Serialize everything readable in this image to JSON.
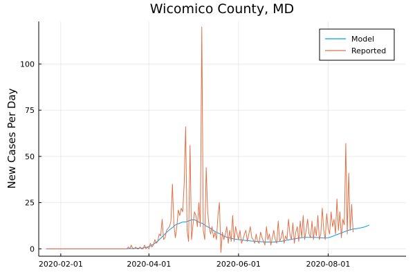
{
  "chart_data": {
    "type": "line",
    "title": "Wicomico County, MD",
    "xlabel": "",
    "ylabel": "New Cases Per Day",
    "x_start": "2020-01-22",
    "xlim": [
      "2020-01-17",
      "2020-09-23"
    ],
    "ylim": [
      -4,
      123
    ],
    "x_ticks": [
      "2020-02-01",
      "2020-04-01",
      "2020-06-01",
      "2020-08-01"
    ],
    "y_ticks": [
      0,
      25,
      50,
      75,
      100
    ],
    "grid": true,
    "legend_position": "top-right",
    "series": [
      {
        "name": "Model",
        "color": "#009af9",
        "values": [
          0,
          0,
          0,
          0,
          0,
          0,
          0,
          0,
          0,
          0,
          0,
          0,
          0,
          0,
          0,
          0,
          0,
          0,
          0,
          0,
          0,
          0,
          0,
          0,
          0,
          0,
          0,
          0,
          0,
          0,
          0,
          0,
          0,
          0,
          0,
          0,
          0,
          0,
          0,
          0,
          0,
          0,
          0,
          0,
          0,
          0,
          0,
          0,
          0,
          0,
          0,
          0,
          0,
          0,
          0,
          0,
          0.1,
          0.1,
          0.1,
          0.2,
          0.2,
          0.2,
          0.3,
          0.3,
          0.4,
          0.4,
          0.5,
          0.6,
          0.8,
          1,
          1.3,
          1.6,
          2,
          2.5,
          3,
          3.6,
          4.2,
          4.9,
          5.7,
          6.5,
          7.3,
          8.1,
          8.9,
          9.6,
          10.3,
          10.9,
          11.5,
          12.2,
          12.9,
          13.3,
          13.6,
          13.9,
          14.2,
          14.5,
          14.5,
          14.6,
          14.8,
          15.1,
          15.4,
          15.6,
          15.7,
          15.7,
          15.3,
          14.9,
          14.5,
          14.1,
          13.9,
          13.5,
          12.9,
          12.3,
          11.9,
          11.5,
          11.1,
          10.5,
          9.9,
          9.4,
          9,
          8.6,
          8.2,
          7.8,
          7.3,
          6.9,
          6.6,
          6.3,
          6.1,
          5.9,
          5.7,
          5.5,
          5.3,
          5.2,
          5.1,
          5,
          4.9,
          4.8,
          4.7,
          4.6,
          4.5,
          4.5,
          4.4,
          4.3,
          4.2,
          4.2,
          4.1,
          4,
          4,
          3.9,
          3.9,
          3.8,
          3.8,
          3.7,
          3.7,
          3.7,
          3.7,
          3.6,
          3.6,
          3.7,
          3.7,
          3.8,
          3.9,
          4,
          4.1,
          4.2,
          4.4,
          4.5,
          4.7,
          4.8,
          5,
          5.1,
          5.3,
          5.4,
          5.5,
          5.7,
          5.8,
          5.9,
          6,
          6.1,
          6.1,
          6.2,
          6.2,
          6.2,
          6.2,
          6.2,
          6.2,
          6.2,
          6.1,
          6.1,
          6,
          6,
          5.9,
          5.9,
          5.9,
          5.9,
          6,
          6.2,
          6.5,
          6.8,
          7.1,
          7.4,
          7.7,
          8,
          8.3,
          8.6,
          8.9,
          9.2,
          9.5,
          9.8,
          10.1,
          10.3,
          10.5,
          10.7,
          10.8,
          10.9,
          11,
          11.2,
          11.3,
          11.5,
          11.7,
          11.9,
          12.2,
          12.5,
          12.9
        ]
      },
      {
        "name": "Reported",
        "color": "#e26f46",
        "values": [
          0,
          0,
          0,
          0,
          0,
          0,
          0,
          0,
          0,
          0,
          0,
          0,
          0,
          0,
          0,
          0,
          0,
          0,
          0,
          0,
          0,
          0,
          0,
          0,
          0,
          0,
          0,
          0,
          0,
          0,
          0,
          0,
          0,
          0,
          0,
          0,
          0,
          0,
          0,
          0,
          0,
          0,
          0,
          0,
          0,
          0,
          0,
          0,
          0,
          0,
          0,
          0,
          0,
          0,
          0,
          0,
          1,
          0,
          2,
          0,
          0,
          1,
          0,
          0,
          1,
          0,
          0,
          2,
          0,
          1,
          0,
          3,
          1,
          2,
          5,
          3,
          4,
          8,
          7,
          16,
          5,
          6,
          10,
          11,
          12,
          15,
          35,
          13,
          6,
          12,
          21,
          18,
          22,
          20,
          35,
          66,
          10,
          4,
          56,
          5,
          13,
          20,
          18,
          12,
          25,
          12,
          120,
          10,
          5,
          44,
          20,
          12,
          8,
          12,
          6,
          9,
          5,
          18,
          25,
          -2,
          9,
          5,
          8,
          12,
          3,
          10,
          4,
          18,
          4,
          12,
          8,
          5,
          10,
          3,
          5,
          8,
          10,
          4,
          8,
          12,
          6,
          5,
          3,
          8,
          4,
          3,
          9,
          6,
          4,
          2,
          12,
          5,
          8,
          2,
          6,
          10,
          5,
          3,
          15,
          4,
          6,
          10,
          3,
          7,
          5,
          16,
          8,
          5,
          14,
          3,
          9,
          12,
          4,
          15,
          6,
          18,
          5,
          10,
          16,
          8,
          6,
          15,
          5,
          12,
          7,
          18,
          5,
          8,
          22,
          10,
          5,
          19,
          11,
          8,
          20,
          12,
          16,
          8,
          27,
          10,
          20,
          6,
          16,
          13,
          57,
          8,
          41,
          10,
          24,
          9
        ]
      }
    ]
  }
}
